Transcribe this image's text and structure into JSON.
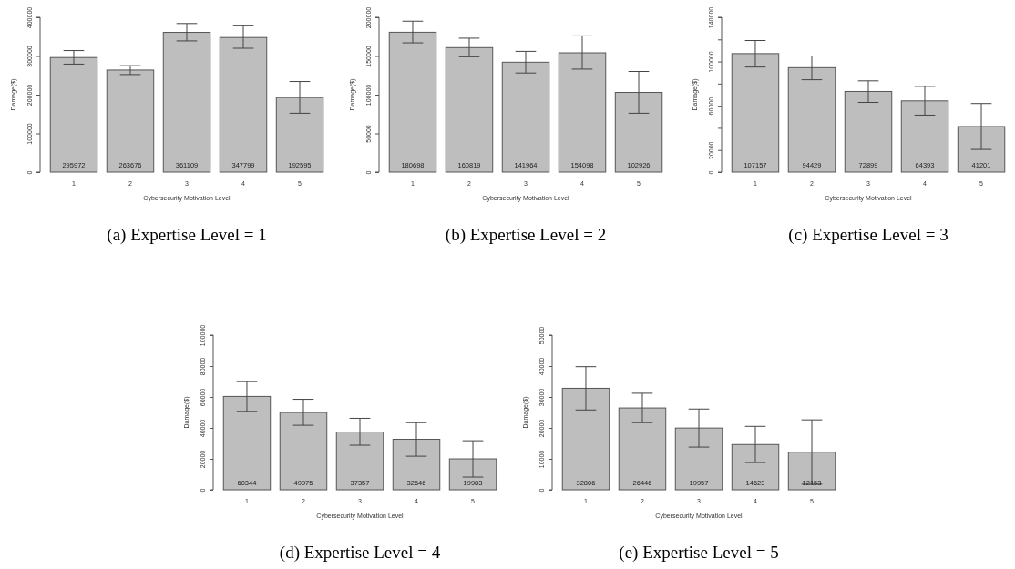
{
  "chart_data": [
    {
      "type": "bar",
      "title": "(a) Expertise Level = 1",
      "xlabel": "Cybersecurity Motivation Level",
      "ylabel": "Damage($)",
      "categories": [
        "1",
        "2",
        "3",
        "4",
        "5"
      ],
      "values": [
        295972,
        263676,
        361109,
        347799,
        192595
      ],
      "color": "#bebebe",
      "errors": [
        [
          279000,
          314000
        ],
        [
          252000,
          275000
        ],
        [
          339000,
          384000
        ],
        [
          320000,
          378000
        ],
        [
          152000,
          234000
        ]
      ],
      "ylim": [
        0,
        400000
      ],
      "yticks": [
        0,
        100000,
        200000,
        300000,
        400000
      ],
      "data_labels": true
    },
    {
      "type": "bar",
      "title": "(b) Expertise Level = 2",
      "xlabel": "Cybersecurity Motivation Level",
      "ylabel": "Damage($)",
      "categories": [
        "1",
        "2",
        "3",
        "4",
        "5"
      ],
      "values": [
        180698,
        160819,
        141964,
        154098,
        102926
      ],
      "color": "#bebebe",
      "errors": [
        [
          167000,
          195000
        ],
        [
          149000,
          173000
        ],
        [
          128000,
          156000
        ],
        [
          133000,
          176000
        ],
        [
          76000,
          130000
        ]
      ],
      "ylim": [
        0,
        200000
      ],
      "yticks": [
        0,
        50000,
        100000,
        150000,
        200000
      ],
      "data_labels": true
    },
    {
      "type": "bar",
      "title": "(c) Expertise Level = 3",
      "xlabel": "Cybersecurity Motivation Level",
      "ylabel": "Damage($)",
      "categories": [
        "1",
        "2",
        "3",
        "4",
        "5"
      ],
      "values": [
        107157,
        94429,
        72899,
        64393,
        41201
      ],
      "color": "#bebebe",
      "errors": [
        [
          95000,
          119000
        ],
        [
          83500,
          105000
        ],
        [
          63000,
          82500
        ],
        [
          51500,
          77500
        ],
        [
          20500,
          62000
        ]
      ],
      "ylim": [
        0,
        140000
      ],
      "yticks": [
        0,
        20000,
        {
          "value": 40000,
          "label": null
        },
        60000,
        {
          "value": 80000,
          "label": null
        },
        100000,
        {
          "value": 120000,
          "label": null
        },
        140000
      ],
      "data_labels": true
    },
    {
      "type": "bar",
      "title": "(d) Expertise Level = 4",
      "xlabel": "Cybersecurity Motivation Level",
      "ylabel": "Damage($)",
      "categories": [
        "1",
        "2",
        "3",
        "4",
        "5"
      ],
      "values": [
        60344,
        49975,
        37357,
        32646,
        19983
      ],
      "color": "#bebebe",
      "errors": [
        [
          50700,
          69900
        ],
        [
          41700,
          58500
        ],
        [
          28800,
          46200
        ],
        [
          21700,
          43400
        ],
        [
          8200,
          31700
        ]
      ],
      "ylim": [
        0,
        100000
      ],
      "yticks": [
        0,
        20000,
        40000,
        60000,
        80000,
        100000
      ],
      "data_labels": true
    },
    {
      "type": "bar",
      "title": "(e) Expertise Level = 5",
      "xlabel": "Cybersecurity Motivation Level",
      "ylabel": "Damage($)",
      "categories": [
        "1",
        "2",
        "3",
        "4",
        "5"
      ],
      "values": [
        32806,
        26446,
        19957,
        14623,
        12153
      ],
      "color": "#bebebe",
      "errors": [
        [
          25800,
          39800
        ],
        [
          21700,
          31200
        ],
        [
          13800,
          26100
        ],
        [
          8800,
          20500
        ],
        [
          1800,
          22600
        ]
      ],
      "ylim": [
        0,
        50000
      ],
      "yticks": [
        0,
        10000,
        20000,
        30000,
        40000,
        50000
      ],
      "data_labels": true
    }
  ]
}
